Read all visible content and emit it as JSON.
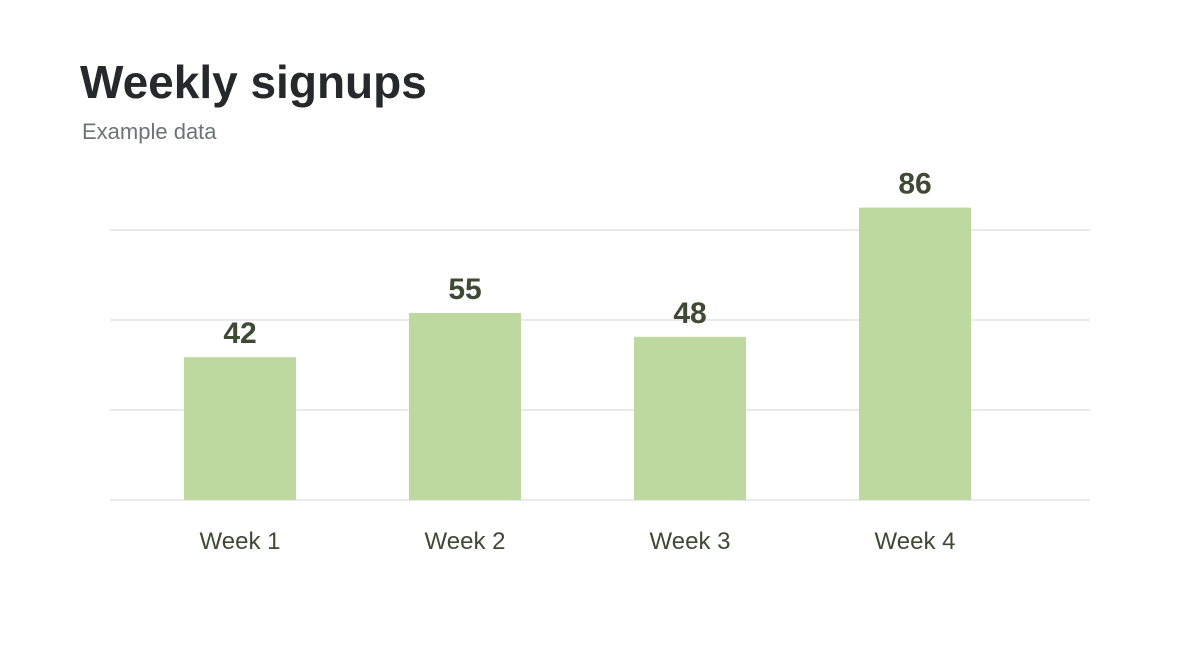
{
  "chart_data": {
    "type": "bar",
    "title": "Weekly signups",
    "subtitle": "Example data",
    "categories": [
      "Week 1",
      "Week 2",
      "Week 3",
      "Week 4"
    ],
    "values": [
      42,
      55,
      48,
      86
    ],
    "color": "#bdd9a0",
    "ylim": [
      0,
      100
    ],
    "grid": true
  }
}
